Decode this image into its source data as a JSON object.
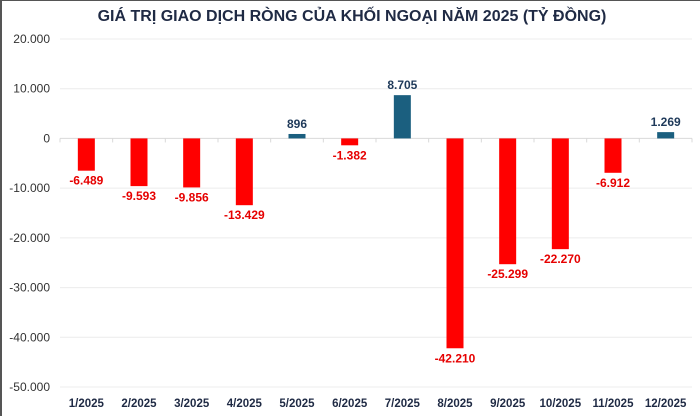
{
  "chart_data": {
    "type": "bar",
    "title": "GIÁ TRỊ GIAO DỊCH RÒNG CỦA KHỐI NGOẠI NĂM 2025 (TỶ ĐỒNG)",
    "categories": [
      "1/2025",
      "2/2025",
      "3/2025",
      "4/2025",
      "5/2025",
      "6/2025",
      "7/2025",
      "8/2025",
      "9/2025",
      "10/2025",
      "11/2025",
      "12/2025"
    ],
    "values": [
      -6489,
      -9593,
      -9856,
      -13429,
      896,
      -1382,
      8705,
      -42210,
      -25299,
      -22270,
      -6912,
      1269
    ],
    "data_labels": [
      "-6.489",
      "-9.593",
      "-9.856",
      "-13.429",
      "896",
      "-1.382",
      "8.705",
      "-42.210",
      "-25.299",
      "-22.270",
      "-6.912",
      "1.269"
    ],
    "ylim": [
      -50000,
      20000
    ],
    "yticks": [
      20000,
      10000,
      0,
      -10000,
      -20000,
      -30000,
      -40000,
      -50000
    ],
    "ytick_labels": [
      "20.000",
      "10.000",
      "0",
      "-10.000",
      "-20.000",
      "-30.000",
      "-40.000",
      "-50.000"
    ],
    "xlabel": "",
    "ylabel": "",
    "grid": true,
    "legend": "none",
    "colors": {
      "positive": "#1b5f7f",
      "negative": "#ff0000",
      "positive_label": "#1f3a5a",
      "negative_label": "#e60000"
    }
  }
}
